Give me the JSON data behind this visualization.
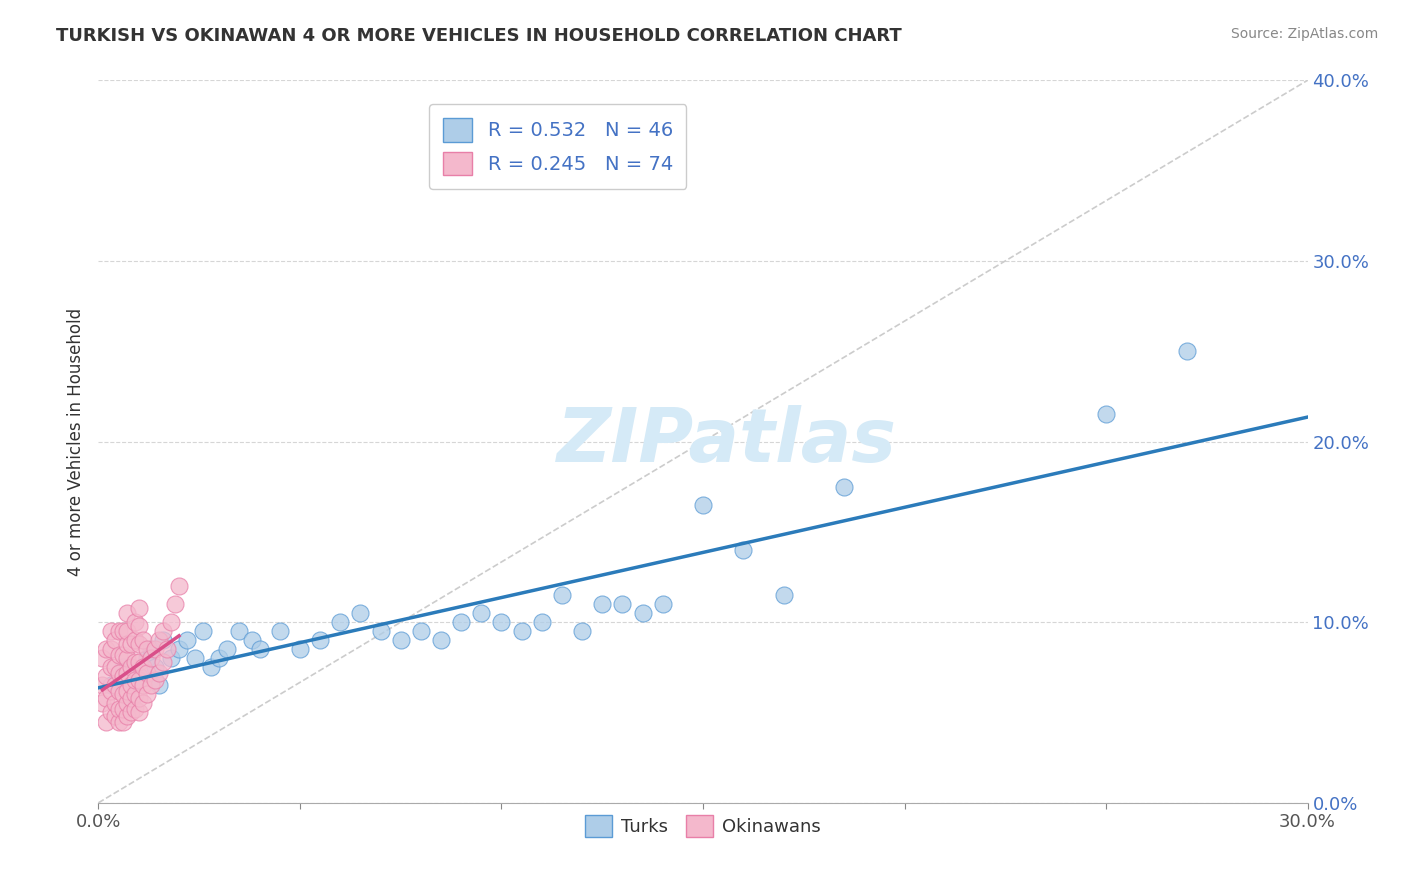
{
  "title": "TURKISH VS OKINAWAN 4 OR MORE VEHICLES IN HOUSEHOLD CORRELATION CHART",
  "source_text": "Source: ZipAtlas.com",
  "ylabel": "4 or more Vehicles in Household",
  "xlim": [
    0.0,
    0.3
  ],
  "ylim": [
    0.0,
    0.4
  ],
  "xticks": [
    0.0,
    0.05,
    0.1,
    0.15,
    0.2,
    0.25,
    0.3
  ],
  "yticks": [
    0.0,
    0.1,
    0.2,
    0.3,
    0.4
  ],
  "xtick_show": [
    0.0,
    0.3
  ],
  "ytick_labels_right": [
    "0.0%",
    "10.0%",
    "20.0%",
    "30.0%",
    "40.0%"
  ],
  "turks_color": "#aecde8",
  "turks_edge_color": "#5b9bd5",
  "okinawans_color": "#f4b8cc",
  "okinawans_edge_color": "#e87fa8",
  "turks_R": 0.532,
  "turks_N": 46,
  "okinawans_R": 0.245,
  "okinawans_N": 74,
  "turks_line_color": "#2b7bba",
  "okinawans_line_color": "#d94f8a",
  "diagonal_color": "#cccccc",
  "watermark": "ZIPatlas",
  "watermark_color": "#d5eaf7",
  "legend_color": "#4472c4",
  "turks_x": [
    0.003,
    0.006,
    0.008,
    0.01,
    0.012,
    0.013,
    0.014,
    0.015,
    0.016,
    0.018,
    0.02,
    0.022,
    0.024,
    0.026,
    0.028,
    0.03,
    0.032,
    0.035,
    0.038,
    0.04,
    0.045,
    0.05,
    0.055,
    0.06,
    0.065,
    0.07,
    0.075,
    0.08,
    0.085,
    0.09,
    0.095,
    0.1,
    0.105,
    0.11,
    0.115,
    0.12,
    0.125,
    0.13,
    0.135,
    0.14,
    0.15,
    0.16,
    0.17,
    0.185,
    0.25,
    0.27
  ],
  "turks_y": [
    0.065,
    0.075,
    0.055,
    0.07,
    0.08,
    0.085,
    0.075,
    0.065,
    0.09,
    0.08,
    0.085,
    0.09,
    0.08,
    0.095,
    0.075,
    0.08,
    0.085,
    0.095,
    0.09,
    0.085,
    0.095,
    0.085,
    0.09,
    0.1,
    0.105,
    0.095,
    0.09,
    0.095,
    0.09,
    0.1,
    0.105,
    0.1,
    0.095,
    0.1,
    0.115,
    0.095,
    0.11,
    0.11,
    0.105,
    0.11,
    0.165,
    0.14,
    0.115,
    0.175,
    0.215,
    0.25
  ],
  "okinawans_x": [
    0.001,
    0.001,
    0.001,
    0.002,
    0.002,
    0.002,
    0.002,
    0.003,
    0.003,
    0.003,
    0.003,
    0.003,
    0.004,
    0.004,
    0.004,
    0.004,
    0.004,
    0.005,
    0.005,
    0.005,
    0.005,
    0.005,
    0.005,
    0.006,
    0.006,
    0.006,
    0.006,
    0.006,
    0.006,
    0.007,
    0.007,
    0.007,
    0.007,
    0.007,
    0.007,
    0.007,
    0.007,
    0.008,
    0.008,
    0.008,
    0.008,
    0.008,
    0.009,
    0.009,
    0.009,
    0.009,
    0.009,
    0.009,
    0.01,
    0.01,
    0.01,
    0.01,
    0.01,
    0.01,
    0.01,
    0.011,
    0.011,
    0.011,
    0.011,
    0.012,
    0.012,
    0.012,
    0.013,
    0.013,
    0.014,
    0.014,
    0.015,
    0.015,
    0.016,
    0.016,
    0.017,
    0.018,
    0.019,
    0.02
  ],
  "okinawans_y": [
    0.055,
    0.065,
    0.08,
    0.045,
    0.058,
    0.07,
    0.085,
    0.05,
    0.062,
    0.075,
    0.085,
    0.095,
    0.048,
    0.055,
    0.065,
    0.075,
    0.09,
    0.045,
    0.052,
    0.062,
    0.072,
    0.082,
    0.095,
    0.045,
    0.052,
    0.06,
    0.07,
    0.082,
    0.095,
    0.048,
    0.055,
    0.062,
    0.072,
    0.08,
    0.088,
    0.095,
    0.105,
    0.05,
    0.058,
    0.065,
    0.075,
    0.088,
    0.052,
    0.06,
    0.068,
    0.078,
    0.09,
    0.1,
    0.05,
    0.058,
    0.068,
    0.078,
    0.088,
    0.098,
    0.108,
    0.055,
    0.065,
    0.075,
    0.09,
    0.06,
    0.072,
    0.085,
    0.065,
    0.08,
    0.068,
    0.085,
    0.072,
    0.09,
    0.078,
    0.095,
    0.085,
    0.1,
    0.11,
    0.12
  ]
}
